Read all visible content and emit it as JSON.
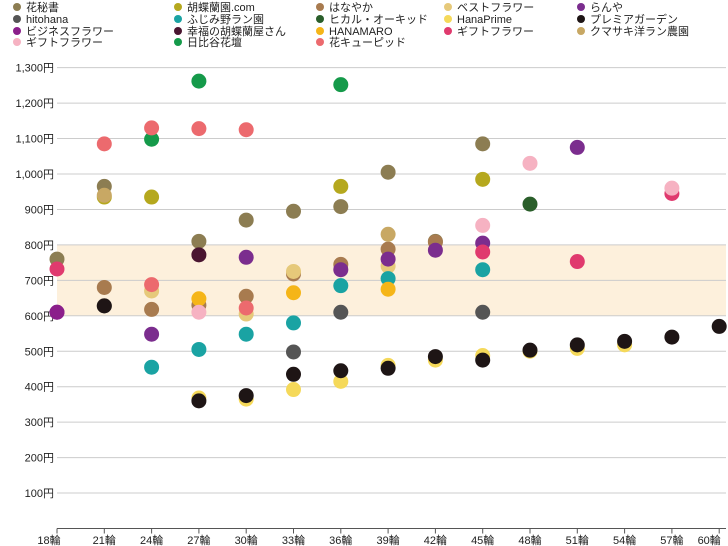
{
  "chart_data": {
    "type": "scatter",
    "title": "",
    "xlabel": "",
    "ylabel": "",
    "x_categories": [
      "18輪",
      "21輪",
      "24輪",
      "27輪",
      "30輪",
      "33輪",
      "36輪",
      "39輪",
      "42輪",
      "45輪",
      "48輪",
      "51輪",
      "54輪",
      "57輪",
      "60輪"
    ],
    "y_ticks": [
      100,
      200,
      300,
      400,
      500,
      600,
      700,
      800,
      900,
      1000,
      1100,
      1200,
      1300
    ],
    "y_tick_labels": [
      "100円",
      "200円",
      "300円",
      "400円",
      "500円",
      "600円",
      "700円",
      "800円",
      "900円",
      "1,000円",
      "1,100円",
      "1,200円",
      "1,300円"
    ],
    "ylim": [
      0,
      1350
    ],
    "highlight_band": [
      600,
      800
    ],
    "highlight_color": "#fdf0dc",
    "grid": true,
    "legend_position": "top",
    "series": [
      {
        "name": "花秘書",
        "color": "#8c7d52",
        "points": [
          [
            "18輪",
            760
          ],
          [
            "21輪",
            965
          ],
          [
            "27輪",
            810
          ],
          [
            "30輪",
            870
          ],
          [
            "33輪",
            895
          ],
          [
            "36輪",
            908
          ],
          [
            "39輪",
            1005
          ],
          [
            "42輪",
            810
          ],
          [
            "45輪",
            1085
          ]
        ]
      },
      {
        "name": "胡蝶蘭園.com",
        "color": "#b5a81e",
        "points": [
          [
            "21輪",
            935
          ],
          [
            "24輪",
            935
          ],
          [
            "36輪",
            965
          ],
          [
            "45輪",
            985
          ]
        ]
      },
      {
        "name": "はなやか",
        "color": "#a87b4f",
        "points": [
          [
            "21輪",
            680
          ],
          [
            "24輪",
            618
          ],
          [
            "27輪",
            630
          ],
          [
            "30輪",
            655
          ],
          [
            "33輪",
            718
          ],
          [
            "36輪",
            745
          ],
          [
            "39輪",
            788
          ],
          [
            "42輪",
            808
          ]
        ]
      },
      {
        "name": "ベストフラワー",
        "color": "#e6c97a",
        "points": [
          [
            "24輪",
            670
          ],
          [
            "30輪",
            605
          ],
          [
            "33輪",
            725
          ],
          [
            "39輪",
            740
          ]
        ]
      },
      {
        "name": "らんや",
        "color": "#7b2d8e",
        "points": [
          [
            "18輪",
            610
          ],
          [
            "24輪",
            548
          ],
          [
            "30輪",
            765
          ],
          [
            "36輪",
            730
          ],
          [
            "39輪",
            760
          ],
          [
            "42輪",
            785
          ],
          [
            "45輪",
            805
          ],
          [
            "51輪",
            1075
          ]
        ]
      },
      {
        "name": "hitohana",
        "color": "#555555",
        "points": [
          [
            "21輪",
            628
          ],
          [
            "33輪",
            498
          ],
          [
            "36輪",
            610
          ],
          [
            "45輪",
            610
          ]
        ]
      },
      {
        "name": "ふじみ野ラン園",
        "color": "#1aa3a3",
        "points": [
          [
            "24輪",
            455
          ],
          [
            "27輪",
            505
          ],
          [
            "30輪",
            548
          ],
          [
            "33輪",
            580
          ],
          [
            "36輪",
            685
          ],
          [
            "39輪",
            705
          ],
          [
            "45輪",
            730
          ]
        ]
      },
      {
        "name": "ヒカル・オーキッド",
        "color": "#2a5e2a",
        "points": [
          [
            "48輪",
            915
          ]
        ]
      },
      {
        "name": "HanaPrime",
        "color": "#f5d95a",
        "points": [
          [
            "27輪",
            368
          ],
          [
            "30輪",
            365
          ],
          [
            "33輪",
            392
          ],
          [
            "36輪",
            415
          ],
          [
            "39輪",
            460
          ],
          [
            "42輪",
            475
          ],
          [
            "45輪",
            488
          ],
          [
            "48輪",
            500
          ],
          [
            "51輪",
            508
          ],
          [
            "54輪",
            518
          ]
        ]
      },
      {
        "name": "プレミアガーデン",
        "color": "#1e1515",
        "points": [
          [
            "21輪",
            628
          ],
          [
            "27輪",
            360
          ],
          [
            "30輪",
            375
          ],
          [
            "33輪",
            435
          ],
          [
            "36輪",
            445
          ],
          [
            "39輪",
            452
          ],
          [
            "42輪",
            485
          ],
          [
            "45輪",
            475
          ],
          [
            "48輪",
            503
          ],
          [
            "51輪",
            518
          ],
          [
            "54輪",
            528
          ],
          [
            "57輪",
            540
          ],
          [
            "60輪",
            570
          ]
        ]
      },
      {
        "name": "ビジネスフラワー",
        "color": "#8b1f8b",
        "points": [
          [
            "18輪",
            610
          ]
        ]
      },
      {
        "name": "幸福の胡蝶蘭屋さん",
        "color": "#4a1530",
        "points": [
          [
            "27輪",
            772
          ]
        ]
      },
      {
        "name": "HANAMARO",
        "color": "#f5b518",
        "points": [
          [
            "27輪",
            648
          ],
          [
            "33輪",
            665
          ],
          [
            "39輪",
            675
          ]
        ]
      },
      {
        "name": "ギフトフラワー",
        "color": "#e03a6e",
        "points": [
          [
            "18輪",
            732
          ],
          [
            "45輪",
            780
          ],
          [
            "51輪",
            753
          ],
          [
            "57輪",
            945
          ]
        ]
      },
      {
        "name": "クマサキ洋ラン農園",
        "color": "#c8a864",
        "points": [
          [
            "21輪",
            940
          ],
          [
            "39輪",
            830
          ]
        ]
      },
      {
        "name": "ギフトフラワー",
        "color": "#f6b2c2",
        "points": [
          [
            "27輪",
            610
          ],
          [
            "45輪",
            855
          ],
          [
            "48輪",
            1030
          ],
          [
            "57輪",
            960
          ]
        ]
      },
      {
        "name": "日比谷花壇",
        "color": "#159a4a",
        "points": [
          [
            "24輪",
            1098
          ],
          [
            "27輪",
            1262
          ],
          [
            "36輪",
            1252
          ]
        ]
      },
      {
        "name": "花キューピッド",
        "color": "#ec6a6e",
        "points": [
          [
            "21輪",
            1085
          ],
          [
            "24輪",
            1130
          ],
          [
            "24輪",
            688
          ],
          [
            "27輪",
            1128
          ],
          [
            "30輪",
            1125
          ],
          [
            "30輪",
            622
          ]
        ]
      }
    ]
  }
}
